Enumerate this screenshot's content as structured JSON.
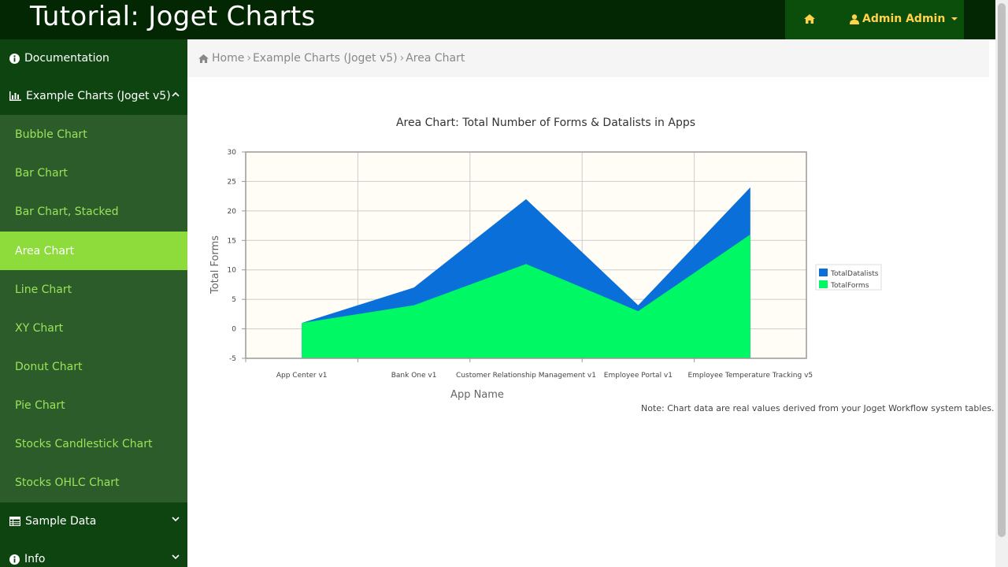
{
  "header": {
    "title": "Tutorial: Joget Charts",
    "user_label": "Admin Admin"
  },
  "sidebar": {
    "sections": [
      {
        "label": "Documentation",
        "icon": "info-icon"
      },
      {
        "label": "Example Charts (Joget v5)",
        "icon": "bar-chart-icon",
        "expanded": true
      },
      {
        "label": "Sample Data",
        "icon": "table-icon"
      },
      {
        "label": "Info",
        "icon": "info-icon"
      }
    ],
    "items": [
      {
        "label": "Bubble Chart"
      },
      {
        "label": "Bar Chart"
      },
      {
        "label": "Bar Chart, Stacked"
      },
      {
        "label": "Area Chart",
        "active": true
      },
      {
        "label": "Line Chart"
      },
      {
        "label": "XY Chart"
      },
      {
        "label": "Donut Chart"
      },
      {
        "label": "Pie Chart"
      },
      {
        "label": "Stocks Candlestick Chart"
      },
      {
        "label": "Stocks OHLC Chart"
      }
    ]
  },
  "breadcrumb": {
    "home": "Home",
    "section": "Example Charts (Joget v5)",
    "current": "Area Chart",
    "separator": "›"
  },
  "note": "Note: Chart data are real values derived from your Joget Workflow system tables.",
  "colors": {
    "topbar": "#022702",
    "sidebar": "#2c5c2a",
    "sidebar_active": "#8ddc3b",
    "sidebar_text": "#9be45a",
    "user_text": "#ffd24a",
    "series_datalists": "#0a6fd8",
    "series_forms": "#00f864",
    "plot_bg": "#fffdf5"
  },
  "chart_data": {
    "type": "area",
    "title": "Area Chart: Total Number of Forms & Datalists in Apps",
    "xlabel": "App Name",
    "ylabel": "Total Forms",
    "categories": [
      "App Center v1",
      "Bank One v1",
      "Customer Relationship Management v1",
      "Employee Portal v1",
      "Employee Temperature Tracking v5"
    ],
    "ylim": [
      -5,
      30
    ],
    "yticks": [
      -5,
      0,
      5,
      10,
      15,
      20,
      25,
      30
    ],
    "stacked": true,
    "grid": true,
    "legend_position": "right",
    "series": [
      {
        "name": "TotalDatalists",
        "values": [
          0,
          3,
          11,
          1,
          8
        ],
        "color": "#0a6fd8"
      },
      {
        "name": "TotalForms",
        "values": [
          1,
          4,
          11,
          3,
          16
        ],
        "color": "#00f864"
      }
    ]
  }
}
